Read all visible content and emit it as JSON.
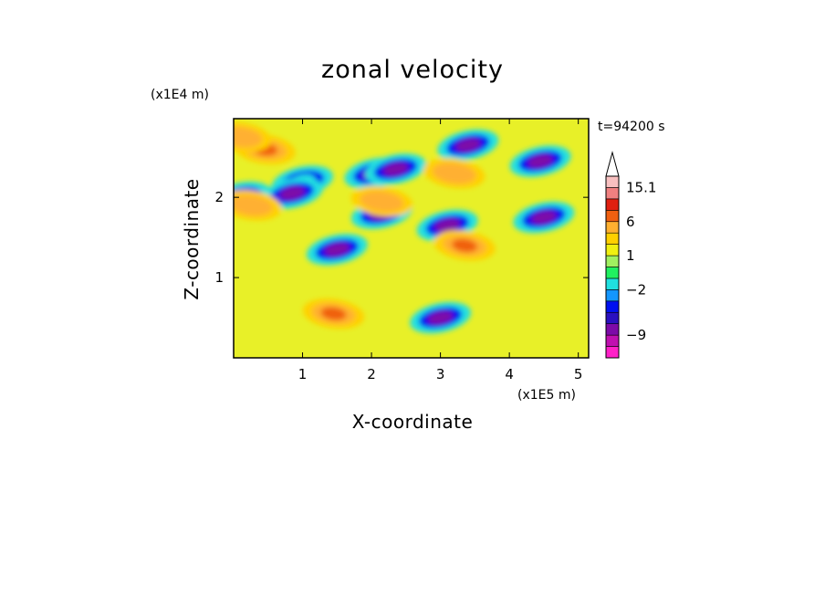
{
  "chart_data": {
    "type": "heatmap",
    "title": "zonal velocity",
    "xlabel": "X-coordinate",
    "ylabel": "Z-coordinate",
    "x_scale_label": "(x1E5 m)",
    "y_scale_label": "(x1E4 m)",
    "time_label": "t=94200 s",
    "xlim": [
      0,
      5.15
    ],
    "ylim": [
      0,
      2.98
    ],
    "x_ticks": [
      1,
      2,
      3,
      4,
      5
    ],
    "y_ticks": [
      1,
      2
    ],
    "x_tick_labels": [
      "1",
      "2",
      "3",
      "4",
      "5"
    ],
    "y_tick_labels": [
      "1",
      "2"
    ],
    "colorbar": {
      "levels": [
        -13,
        -11,
        -9,
        -7,
        -5,
        -3,
        -2,
        -1,
        0,
        1,
        2,
        3,
        6,
        9,
        12,
        15.1
      ],
      "colors": [
        "#ff20c8",
        "#c010b0",
        "#7d0aa8",
        "#2a10c0",
        "#0010f0",
        "#1496ff",
        "#20e0e0",
        "#20f060",
        "#a0f060",
        "#f0f010",
        "#ffd000",
        "#ffb030",
        "#f06010",
        "#e02010",
        "#f08080",
        "#f8c0c0"
      ],
      "labels": [
        "15.1",
        "6",
        "1",
        "−2",
        "−9"
      ],
      "label_values": [
        15.1,
        6,
        1,
        -2,
        -9
      ],
      "extend": "max"
    },
    "field_features": [
      {
        "x": 0.45,
        "z": 2.6,
        "value": 6
      },
      {
        "x": 1.0,
        "z": 2.2,
        "value": -2
      },
      {
        "x": 0.85,
        "z": 2.05,
        "value": -9
      },
      {
        "x": 0.1,
        "z": 2.0,
        "value": -9
      },
      {
        "x": 2.05,
        "z": 2.3,
        "value": -9
      },
      {
        "x": 2.35,
        "z": 2.35,
        "value": -9
      },
      {
        "x": 2.15,
        "z": 1.8,
        "value": -9
      },
      {
        "x": 1.5,
        "z": 1.35,
        "value": -9
      },
      {
        "x": 3.4,
        "z": 2.65,
        "value": -9
      },
      {
        "x": 4.45,
        "z": 2.45,
        "value": -9
      },
      {
        "x": 3.1,
        "z": 1.65,
        "value": -9
      },
      {
        "x": 4.5,
        "z": 1.75,
        "value": -9
      },
      {
        "x": 3.0,
        "z": 0.5,
        "value": -9
      },
      {
        "x": 3.35,
        "z": 1.4,
        "value": 6
      },
      {
        "x": 3.2,
        "z": 2.3,
        "value": 3
      },
      {
        "x": 2.15,
        "z": 1.95,
        "value": 3
      },
      {
        "x": 0.25,
        "z": 1.9,
        "value": 3
      },
      {
        "x": 1.45,
        "z": 0.55,
        "value": 6
      },
      {
        "x": 0.1,
        "z": 2.75,
        "value": 3
      }
    ]
  }
}
